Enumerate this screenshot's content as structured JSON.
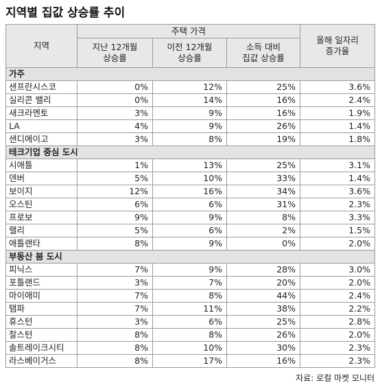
{
  "title": "지역별 집값 상승률 추이",
  "header": {
    "region": "지역",
    "price": "주택 가격",
    "sub": [
      "지난 12개월\n상승률",
      "이전 12개월\n상승률",
      "소득 대비\n집값 상승률"
    ],
    "jobs": "올해 일자리\n증가율"
  },
  "groups": [
    {
      "name": "가주",
      "rows": [
        [
          "샌프란시스코",
          "0%",
          "12%",
          "25%",
          "3.6%"
        ],
        [
          "실리콘 밸리",
          "0%",
          "14%",
          "16%",
          "2.4%"
        ],
        [
          "새크라멘토",
          "3%",
          "9%",
          "16%",
          "1.9%"
        ],
        [
          "LA",
          "4%",
          "9%",
          "26%",
          "1.4%"
        ],
        [
          "샌디에이고",
          "3%",
          "8%",
          "19%",
          "1.8%"
        ]
      ]
    },
    {
      "name": "테크기업 중심 도시",
      "rows": [
        [
          "시애틀",
          "1%",
          "13%",
          "25%",
          "3.1%"
        ],
        [
          "덴버",
          "5%",
          "10%",
          "33%",
          "1.4%"
        ],
        [
          "보이지",
          "12%",
          "16%",
          "34%",
          "3.6%"
        ],
        [
          "오스틴",
          "6%",
          "6%",
          "31%",
          "2.3%"
        ],
        [
          "프로보",
          "9%",
          "9%",
          "8%",
          "3.3%"
        ],
        [
          "랠리",
          "5%",
          "6%",
          "2%",
          "1.5%"
        ],
        [
          "애틀랜타",
          "8%",
          "9%",
          "0%",
          "2.0%"
        ]
      ]
    },
    {
      "name": "부동산 붐 도시",
      "rows": [
        [
          "피닉스",
          "7%",
          "9%",
          "28%",
          "3.0%"
        ],
        [
          "포틀랜드",
          "3%",
          "7%",
          "20%",
          "2.0%"
        ],
        [
          "마이애미",
          "7%",
          "8%",
          "44%",
          "2.4%"
        ],
        [
          "탬파",
          "7%",
          "11%",
          "38%",
          "2.2%"
        ],
        [
          "휴스턴",
          "3%",
          "6%",
          "25%",
          "2.8%"
        ],
        [
          "찰스턴",
          "8%",
          "8%",
          "26%",
          "2.0%"
        ],
        [
          "솔트레이크시티",
          "8%",
          "10%",
          "30%",
          "2.3%"
        ],
        [
          "라스베이거스",
          "8%",
          "17%",
          "16%",
          "2.3%"
        ]
      ]
    }
  ],
  "source": "자료: 로컬 마켓 모니터"
}
